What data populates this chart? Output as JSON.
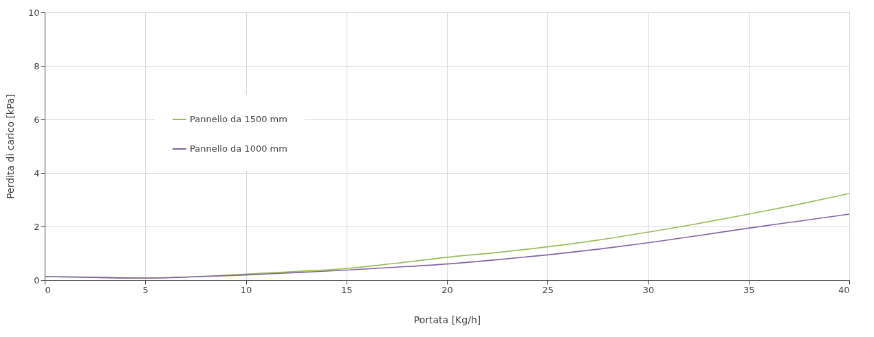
{
  "chart_data": {
    "type": "line",
    "xlabel": "Portata  [Kg/h]",
    "ylabel": "Perdita di carico [kPa]",
    "x": [
      0,
      2.5,
      5,
      7.5,
      10,
      12.5,
      15,
      17.5,
      20,
      22.5,
      25,
      27.5,
      30,
      32.5,
      35,
      37.5,
      40
    ],
    "series": [
      {
        "name": "Pannello da 1500 mm",
        "color": "#9bbb59",
        "values": [
          0.13,
          0.1,
          0.08,
          0.13,
          0.22,
          0.32,
          0.43,
          0.63,
          0.85,
          1.03,
          1.24,
          1.49,
          1.79,
          2.11,
          2.46,
          2.83,
          3.23
        ]
      },
      {
        "name": "Pannello da 1000 mm",
        "color": "#8064a2",
        "values": [
          0.13,
          0.1,
          0.07,
          0.12,
          0.19,
          0.28,
          0.37,
          0.48,
          0.6,
          0.76,
          0.94,
          1.15,
          1.39,
          1.66,
          1.94,
          2.2,
          2.46
        ]
      }
    ],
    "xlim": [
      0,
      40
    ],
    "xticks": [
      0,
      5,
      10,
      15,
      20,
      25,
      30,
      35,
      40
    ],
    "ylim": [
      0,
      10
    ],
    "yticks": [
      0,
      2,
      4,
      6,
      8,
      10
    ],
    "grid": true,
    "legend": "top left",
    "marker": "none",
    "line_style": "solid"
  }
}
